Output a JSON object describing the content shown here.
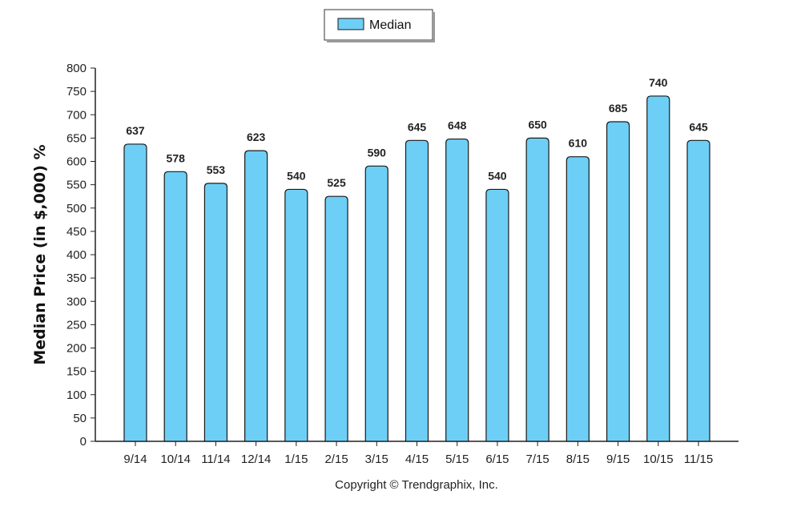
{
  "chart_data": {
    "type": "bar",
    "categories": [
      "9/14",
      "10/14",
      "11/14",
      "12/14",
      "1/15",
      "2/15",
      "3/15",
      "4/15",
      "5/15",
      "6/15",
      "7/15",
      "8/15",
      "9/15",
      "10/15",
      "11/15"
    ],
    "series": [
      {
        "name": "Median",
        "values": [
          637,
          578,
          553,
          623,
          540,
          525,
          590,
          645,
          648,
          540,
          650,
          610,
          685,
          740,
          645
        ]
      }
    ],
    "ylabel": "Median Price (in $,000) %",
    "xlabel": "",
    "ylim": [
      0,
      800
    ],
    "ytick_step": 50,
    "grid": false,
    "legend_position": "top-center",
    "bar_color": "#6ecff6",
    "bar_edge_color": "#1a1a1a"
  },
  "footer": {
    "copyright": "Copyright © Trendgraphix, Inc."
  }
}
